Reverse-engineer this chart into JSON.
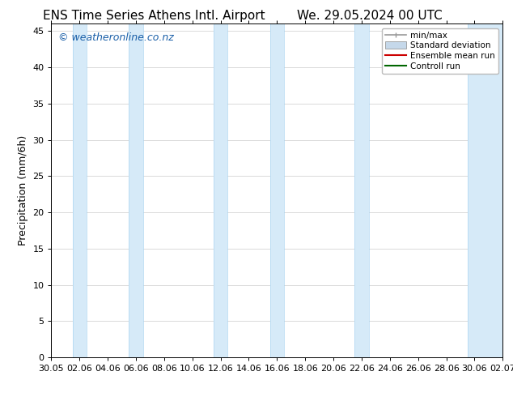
{
  "title_left": "ENS Time Series Athens Intl. Airport",
  "title_right": "We. 29.05.2024 00 UTC",
  "ylabel": "Precipitation (mm/6h)",
  "watermark": "© weatheronline.co.nz",
  "ylim": [
    0,
    46
  ],
  "yticks": [
    0,
    5,
    10,
    15,
    20,
    25,
    30,
    35,
    40,
    45
  ],
  "x_start": 0,
  "x_end": 16.0,
  "xtick_labels": [
    "30.05",
    "02.06",
    "04.06",
    "06.06",
    "08.06",
    "10.06",
    "12.06",
    "14.06",
    "16.06",
    "18.06",
    "20.06",
    "22.06",
    "24.06",
    "26.06",
    "28.06",
    "30.06",
    "02.07"
  ],
  "xtick_positions": [
    0.0,
    1.0,
    2.0,
    3.0,
    4.0,
    5.0,
    6.0,
    7.0,
    8.0,
    9.0,
    10.0,
    11.0,
    12.0,
    13.0,
    14.0,
    15.0,
    16.0
  ],
  "shaded_bands": [
    [
      0.75,
      1.25
    ],
    [
      2.75,
      3.25
    ],
    [
      5.75,
      6.25
    ],
    [
      7.75,
      8.25
    ],
    [
      10.75,
      11.25
    ],
    [
      14.75,
      16.0
    ]
  ],
  "band_color": "#d6eaf8",
  "band_edge_color": "#aed6f1",
  "bg_color": "#ffffff",
  "grid_color": "#cccccc",
  "legend_entries": [
    "min/max",
    "Standard deviation",
    "Ensemble mean run",
    "Controll run"
  ],
  "legend_colors": [
    "#999999",
    "#c5d8ea",
    "#cc0000",
    "#006600"
  ],
  "title_fontsize": 11,
  "axis_label_fontsize": 9,
  "tick_fontsize": 8,
  "watermark_color": "#1a5fa8",
  "watermark_fontsize": 9
}
